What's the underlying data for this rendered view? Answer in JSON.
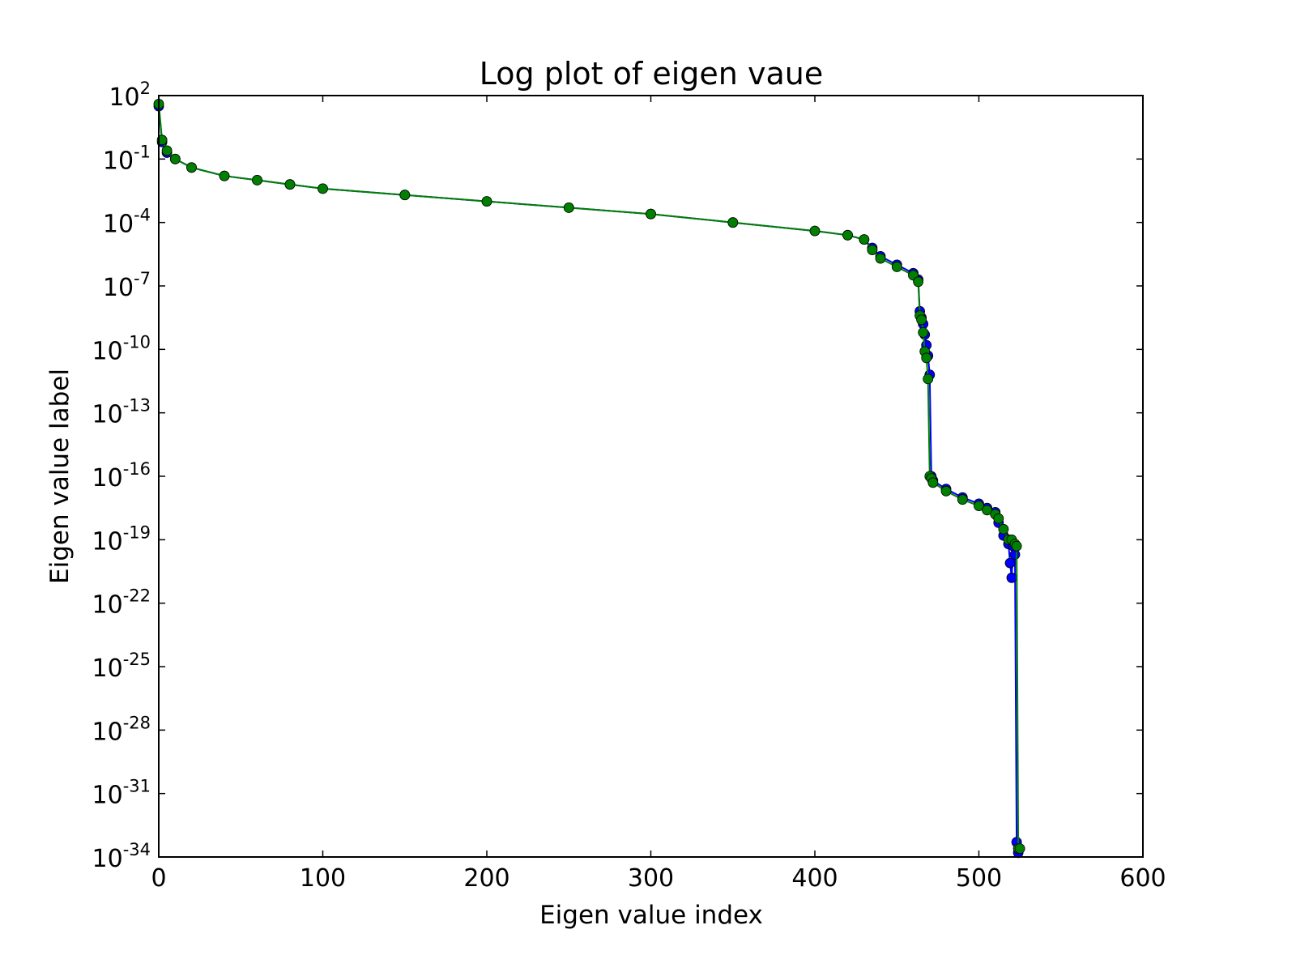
{
  "chart_data": {
    "type": "line",
    "title": "Log plot of eigen vaue",
    "xlabel": "Eigen value index",
    "ylabel": "Eigen value label",
    "xlim": [
      0,
      600
    ],
    "ylim_log10": [
      -34,
      2
    ],
    "yscale": "log",
    "grid": false,
    "x_ticks": [
      "0",
      "100",
      "200",
      "300",
      "400",
      "500",
      "600"
    ],
    "y_ticks": [
      {
        "base": "10",
        "exp": "2"
      },
      {
        "base": "10",
        "exp": "-1"
      },
      {
        "base": "10",
        "exp": "-4"
      },
      {
        "base": "10",
        "exp": "-7"
      },
      {
        "base": "10",
        "exp": "-10"
      },
      {
        "base": "10",
        "exp": "-13"
      },
      {
        "base": "10",
        "exp": "-16"
      },
      {
        "base": "10",
        "exp": "-19"
      },
      {
        "base": "10",
        "exp": "-22"
      },
      {
        "base": "10",
        "exp": "-25"
      },
      {
        "base": "10",
        "exp": "-28"
      },
      {
        "base": "10",
        "exp": "-31"
      },
      {
        "base": "10",
        "exp": "-34"
      }
    ],
    "series": [
      {
        "color": "#0000ff",
        "marker": "circle",
        "x": [
          0,
          2,
          5,
          10,
          20,
          40,
          60,
          80,
          100,
          150,
          200,
          250,
          300,
          350,
          400,
          420,
          430,
          435,
          440,
          450,
          460,
          463,
          464,
          465,
          466,
          467,
          468,
          469,
          470,
          471,
          472,
          480,
          490,
          500,
          505,
          510,
          512,
          515,
          518,
          519,
          520,
          521,
          522,
          523,
          524
        ],
        "y_log10": [
          1.5,
          -0.2,
          -0.7,
          -1.0,
          -1.4,
          -1.8,
          -2.0,
          -2.2,
          -2.4,
          -2.7,
          -3.0,
          -3.3,
          -3.6,
          -4.0,
          -4.4,
          -4.6,
          -4.8,
          -5.2,
          -5.6,
          -6.0,
          -6.4,
          -6.7,
          -8.2,
          -8.5,
          -8.8,
          -9.3,
          -9.8,
          -10.3,
          -11.2,
          -16.0,
          -16.2,
          -16.6,
          -17.0,
          -17.3,
          -17.5,
          -17.7,
          -18.2,
          -18.8,
          -19.2,
          -20.1,
          -20.8,
          -19.3,
          -19.7,
          -33.3,
          -33.8
        ]
      },
      {
        "color": "#008000",
        "marker": "circle",
        "x": [
          0,
          2,
          5,
          10,
          20,
          40,
          60,
          80,
          100,
          150,
          200,
          250,
          300,
          350,
          400,
          420,
          430,
          435,
          440,
          450,
          460,
          463,
          464,
          465,
          466,
          467,
          468,
          469,
          470,
          471,
          472,
          480,
          490,
          500,
          505,
          510,
          512,
          515,
          518,
          520,
          522,
          523,
          524,
          525
        ],
        "y_log10": [
          1.6,
          -0.1,
          -0.6,
          -1.0,
          -1.4,
          -1.8,
          -2.0,
          -2.2,
          -2.4,
          -2.7,
          -3.0,
          -3.3,
          -3.6,
          -4.0,
          -4.4,
          -4.6,
          -4.8,
          -5.3,
          -5.7,
          -6.1,
          -6.5,
          -6.8,
          -8.4,
          -8.6,
          -9.2,
          -10.1,
          -10.4,
          -11.4,
          -16.0,
          -16.1,
          -16.3,
          -16.7,
          -17.1,
          -17.4,
          -17.6,
          -17.8,
          -18.0,
          -18.5,
          -19.0,
          -19.0,
          -19.2,
          -19.3,
          -33.6,
          -33.6
        ]
      }
    ]
  }
}
